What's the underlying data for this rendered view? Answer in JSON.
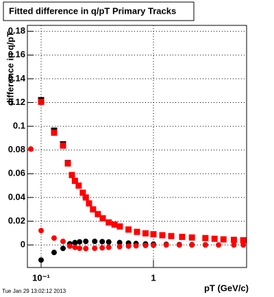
{
  "chart_data": {
    "type": "scatter",
    "title": "Fitted difference in q/pT  Primary Tracks",
    "y_label": "difference in q/pT",
    "x_label": "pT (GeV/c)",
    "timestamp": "Tue Jan 29 13:02:12 2013",
    "log_x": true,
    "grid": true,
    "xlim": [
      0.0755,
      6.75
    ],
    "ylim": [
      -0.019,
      0.185
    ],
    "xticks": [
      {
        "value": 0.1,
        "label": "10⁻¹"
      },
      1
    ],
    "yticks": [
      0,
      0.02,
      0.04,
      0.06,
      0.08,
      0.1,
      0.12,
      0.14,
      0.16,
      0.18
    ],
    "series": [
      {
        "color": "#000000",
        "marker": "square",
        "x": [
          0.1,
          0.1305,
          0.1567,
          0.1729
        ],
        "values": [
          0.122,
          0.0963,
          0.0848,
          0.069
        ]
      },
      {
        "color": "#ff0000",
        "marker": "square",
        "x": [
          0.1,
          0.1305,
          0.1567,
          0.1729,
          0.188,
          0.2,
          0.216,
          0.235,
          0.25,
          0.267,
          0.29,
          0.32,
          0.354,
          0.4,
          0.45,
          0.502,
          0.6,
          0.714,
          0.85,
          1.0,
          1.2,
          1.44,
          1.8,
          2.2,
          2.9,
          3.5,
          4.2,
          5.2,
          6.3
        ],
        "values": [
          0.1206,
          0.0946,
          0.0837,
          0.0687,
          0.0589,
          0.054,
          0.05,
          0.044,
          0.04,
          0.035,
          0.03,
          0.026,
          0.0225,
          0.019,
          0.0172,
          0.0156,
          0.013,
          0.011,
          0.0098,
          0.009,
          0.0082,
          0.0075,
          0.0068,
          0.0063,
          0.0058,
          0.0052,
          0.0047,
          0.0043,
          0.004
        ]
      },
      {
        "color": "#000000",
        "marker": "circle",
        "x": [
          0.1,
          0.1305,
          0.1567,
          0.18,
          0.2,
          0.22,
          0.25,
          0.3,
          0.35,
          0.4,
          0.5,
          0.6,
          0.7,
          0.85,
          1.0,
          1.3,
          1.7,
          2.2,
          2.9
        ],
        "values": [
          -0.0127,
          -0.0063,
          -0.0029,
          0.001,
          0.002,
          0.0026,
          0.003,
          0.003,
          0.0028,
          0.0025,
          0.002,
          0.0016,
          0.0012,
          0.0009,
          0.0007,
          0.0005,
          0.0003,
          0.0002,
          0.0001
        ]
      },
      {
        "color": "#ff0000",
        "marker": "circle",
        "x": [
          0.081,
          0.1,
          0.1305,
          0.1567,
          0.18,
          0.2,
          0.22,
          0.25,
          0.3,
          0.35,
          0.4,
          0.5,
          0.6,
          0.7,
          0.85,
          1.0,
          1.3,
          1.7,
          2.2,
          2.9,
          3.8,
          5.2,
          6.3
        ],
        "values": [
          0.0808,
          0.0121,
          0.0058,
          0.003,
          -0.001,
          -0.002,
          -0.0028,
          -0.003,
          -0.0028,
          -0.0024,
          -0.002,
          -0.0014,
          -0.001,
          -0.0007,
          -0.0004,
          -0.0002,
          0,
          0,
          0,
          0,
          0,
          0,
          0
        ]
      }
    ]
  }
}
